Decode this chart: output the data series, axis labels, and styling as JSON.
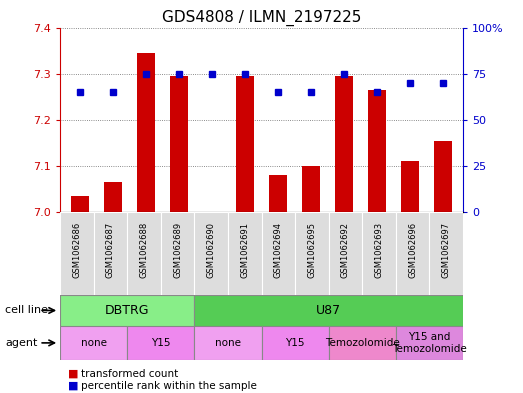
{
  "title": "GDS4808 / ILMN_2197225",
  "samples": [
    "GSM1062686",
    "GSM1062687",
    "GSM1062688",
    "GSM1062689",
    "GSM1062690",
    "GSM1062691",
    "GSM1062694",
    "GSM1062695",
    "GSM1062692",
    "GSM1062693",
    "GSM1062696",
    "GSM1062697"
  ],
  "red_values": [
    7.035,
    7.065,
    7.345,
    7.295,
    7.0,
    7.295,
    7.08,
    7.1,
    7.295,
    7.265,
    7.11,
    7.155
  ],
  "blue_values": [
    65,
    65,
    75,
    75,
    75,
    75,
    65,
    65,
    75,
    65,
    70,
    70
  ],
  "ylim_left": [
    7.0,
    7.4
  ],
  "ylim_right": [
    0,
    100
  ],
  "yticks_left": [
    7.0,
    7.1,
    7.2,
    7.3,
    7.4
  ],
  "yticks_right": [
    0,
    25,
    50,
    75,
    100
  ],
  "ytick_labels_right": [
    "0",
    "25",
    "50",
    "75",
    "100%"
  ],
  "cell_line_groups": [
    {
      "label": "DBTRG",
      "start": 0,
      "end": 3,
      "color": "#88EE88"
    },
    {
      "label": "U87",
      "start": 4,
      "end": 11,
      "color": "#55CC55"
    }
  ],
  "agent_groups": [
    {
      "label": "none",
      "start": 0,
      "end": 1,
      "color": "#F0A0F0"
    },
    {
      "label": "Y15",
      "start": 2,
      "end": 3,
      "color": "#EE88EE"
    },
    {
      "label": "none",
      "start": 4,
      "end": 5,
      "color": "#F0A0F0"
    },
    {
      "label": "Y15",
      "start": 6,
      "end": 7,
      "color": "#EE88EE"
    },
    {
      "label": "Temozolomide",
      "start": 8,
      "end": 9,
      "color": "#EE88CC"
    },
    {
      "label": "Y15 and\nTemozolomide",
      "start": 10,
      "end": 11,
      "color": "#DD88DD"
    }
  ],
  "bar_color": "#CC0000",
  "dot_color": "#0000CC",
  "bar_width": 0.55,
  "grid_color": "#666666",
  "left_tick_color": "#CC0000",
  "right_tick_color": "#0000CC",
  "sample_box_color": "#DDDDDD",
  "cell_line_label": "cell line",
  "agent_label": "agent"
}
